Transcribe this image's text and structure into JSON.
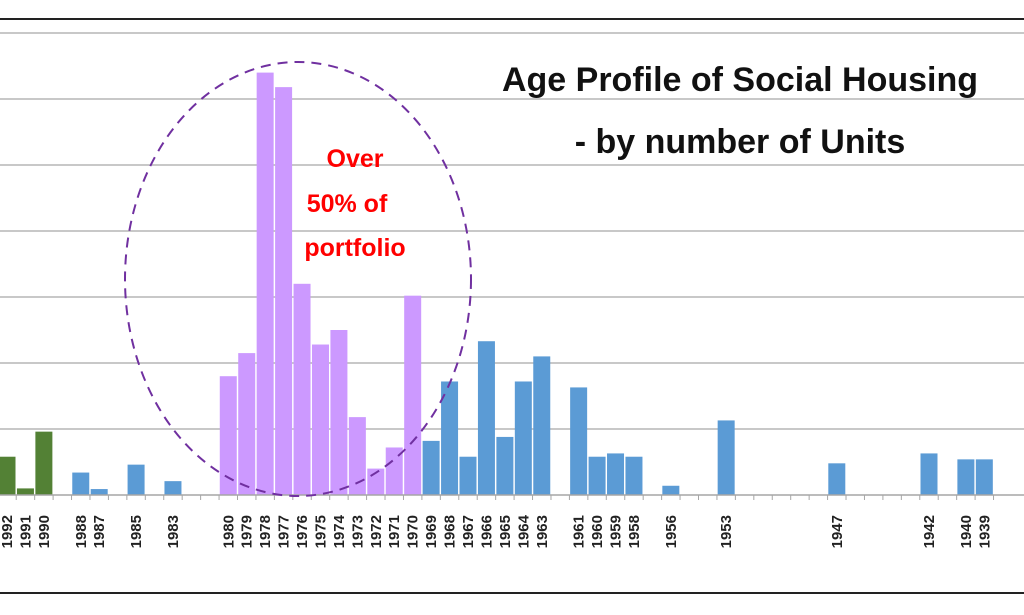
{
  "chart_data": {
    "type": "bar",
    "title_line1": "Age Profile of Social Housing",
    "title_line2": "- by number of Units",
    "xlabel": "",
    "ylabel": "",
    "ylim": [
      0,
      700
    ],
    "grid": true,
    "colors": {
      "recent": "#538135",
      "other": "#5b9bd5",
      "highlight": "#cc99ff",
      "ellipse": "#7030a0",
      "annotation": "#ff0000",
      "gridline": "#a6a6a6"
    },
    "annotation": [
      "Over",
      "50% of",
      "portfolio"
    ],
    "bars": [
      {
        "year": 1992,
        "value": 58,
        "group": "recent"
      },
      {
        "year": 1991,
        "value": 10,
        "group": "recent"
      },
      {
        "year": 1990,
        "value": 96,
        "group": "recent"
      },
      {
        "year": 1988,
        "value": 34,
        "group": "other"
      },
      {
        "year": 1987,
        "value": 9,
        "group": "other"
      },
      {
        "year": 1985,
        "value": 46,
        "group": "other"
      },
      {
        "year": 1983,
        "value": 21,
        "group": "other"
      },
      {
        "year": 1980,
        "value": 180,
        "group": "highlight"
      },
      {
        "year": 1979,
        "value": 215,
        "group": "highlight"
      },
      {
        "year": 1978,
        "value": 640,
        "group": "highlight"
      },
      {
        "year": 1977,
        "value": 618,
        "group": "highlight"
      },
      {
        "year": 1976,
        "value": 320,
        "group": "highlight"
      },
      {
        "year": 1975,
        "value": 228,
        "group": "highlight"
      },
      {
        "year": 1974,
        "value": 250,
        "group": "highlight"
      },
      {
        "year": 1973,
        "value": 118,
        "group": "highlight"
      },
      {
        "year": 1972,
        "value": 40,
        "group": "highlight"
      },
      {
        "year": 1971,
        "value": 72,
        "group": "highlight"
      },
      {
        "year": 1970,
        "value": 302,
        "group": "highlight"
      },
      {
        "year": 1969,
        "value": 82,
        "group": "other"
      },
      {
        "year": 1968,
        "value": 172,
        "group": "other"
      },
      {
        "year": 1967,
        "value": 58,
        "group": "other"
      },
      {
        "year": 1966,
        "value": 233,
        "group": "other"
      },
      {
        "year": 1965,
        "value": 88,
        "group": "other"
      },
      {
        "year": 1964,
        "value": 172,
        "group": "other"
      },
      {
        "year": 1963,
        "value": 210,
        "group": "other"
      },
      {
        "year": 1961,
        "value": 163,
        "group": "other"
      },
      {
        "year": 1960,
        "value": 58,
        "group": "other"
      },
      {
        "year": 1959,
        "value": 63,
        "group": "other"
      },
      {
        "year": 1958,
        "value": 58,
        "group": "other"
      },
      {
        "year": 1956,
        "value": 14,
        "group": "other"
      },
      {
        "year": 1953,
        "value": 113,
        "group": "other"
      },
      {
        "year": 1947,
        "value": 48,
        "group": "other"
      },
      {
        "year": 1942,
        "value": 63,
        "group": "other"
      },
      {
        "year": 1940,
        "value": 54,
        "group": "other"
      },
      {
        "year": 1939,
        "value": 54,
        "group": "other"
      }
    ]
  }
}
